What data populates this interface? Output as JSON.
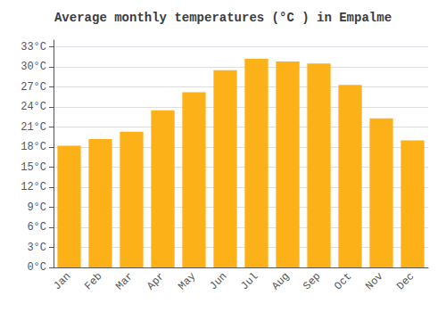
{
  "chart_data": {
    "type": "bar",
    "title": "Average monthly temperatures (°C ) in Empalme",
    "categories": [
      "Jan",
      "Feb",
      "Mar",
      "Apr",
      "May",
      "Jun",
      "Jul",
      "Aug",
      "Sep",
      "Oct",
      "Nov",
      "Dec"
    ],
    "values": [
      18.2,
      19.2,
      20.3,
      23.5,
      26.2,
      29.5,
      31.2,
      30.8,
      30.5,
      27.3,
      22.3,
      19.0
    ],
    "color": "#FBB117",
    "ylim": [
      0,
      34
    ],
    "yticks": [
      {
        "value": 0,
        "label": "0°C"
      },
      {
        "value": 3,
        "label": "3°C"
      },
      {
        "value": 6,
        "label": "6°C"
      },
      {
        "value": 9,
        "label": "9°C"
      },
      {
        "value": 12,
        "label": "12°C"
      },
      {
        "value": 15,
        "label": "15°C"
      },
      {
        "value": 18,
        "label": "18°C"
      },
      {
        "value": 21,
        "label": "21°C"
      },
      {
        "value": 24,
        "label": "24°C"
      },
      {
        "value": 27,
        "label": "27°C"
      },
      {
        "value": 30,
        "label": "30°C"
      },
      {
        "value": 33,
        "label": "33°C"
      }
    ],
    "grid": true
  }
}
